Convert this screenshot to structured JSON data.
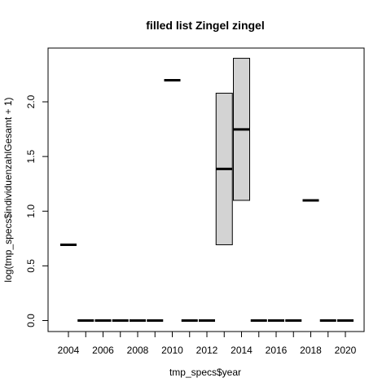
{
  "chart_data": {
    "type": "boxplot",
    "title": "filled list Zingel zingel",
    "xlabel": "tmp_specs$year",
    "ylabel": "log(tmp_specs$individuenzahlGesamt + 1)",
    "categories": [
      "2004",
      "2005",
      "2006",
      "2007",
      "2008",
      "2009",
      "2010",
      "2011",
      "2012",
      "2013",
      "2014",
      "2015",
      "2016",
      "2017",
      "2018",
      "2019",
      "2020"
    ],
    "x_tick_labels": [
      "2004",
      "2006",
      "2008",
      "2010",
      "2012",
      "2014",
      "2016",
      "2018",
      "2020"
    ],
    "y_ticks": [
      0.0,
      0.5,
      1.0,
      1.5,
      2.0
    ],
    "y_tick_labels": [
      "0.0",
      "0.5",
      "1.0",
      "1.5",
      "2.0"
    ],
    "ylim": [
      -0.1,
      2.5
    ],
    "boxes": [
      {
        "x": "2004",
        "q1": 0.693,
        "median": 0.693,
        "q3": 0.693
      },
      {
        "x": "2005",
        "q1": 0.0,
        "median": 0.0,
        "q3": 0.0
      },
      {
        "x": "2006",
        "q1": 0.0,
        "median": 0.0,
        "q3": 0.0
      },
      {
        "x": "2007",
        "q1": 0.0,
        "median": 0.0,
        "q3": 0.0
      },
      {
        "x": "2008",
        "q1": 0.0,
        "median": 0.0,
        "q3": 0.0
      },
      {
        "x": "2009",
        "q1": 0.0,
        "median": 0.0,
        "q3": 0.0
      },
      {
        "x": "2010",
        "q1": 2.197,
        "median": 2.197,
        "q3": 2.197
      },
      {
        "x": "2011",
        "q1": 0.0,
        "median": 0.0,
        "q3": 0.0
      },
      {
        "x": "2012",
        "q1": 0.0,
        "median": 0.0,
        "q3": 0.0
      },
      {
        "x": "2013",
        "q1": 0.693,
        "median": 1.386,
        "q3": 2.079
      },
      {
        "x": "2014",
        "q1": 1.099,
        "median": 1.748,
        "q3": 2.398
      },
      {
        "x": "2015",
        "q1": 0.0,
        "median": 0.0,
        "q3": 0.0
      },
      {
        "x": "2016",
        "q1": 0.0,
        "median": 0.0,
        "q3": 0.0
      },
      {
        "x": "2017",
        "q1": 0.0,
        "median": 0.0,
        "q3": 0.0
      },
      {
        "x": "2018",
        "q1": 1.099,
        "median": 1.099,
        "q3": 1.099
      },
      {
        "x": "2019",
        "q1": 0.0,
        "median": 0.0,
        "q3": 0.0
      },
      {
        "x": "2020",
        "q1": 0.0,
        "median": 0.0,
        "q3": 0.0
      }
    ],
    "box_fill": "#d3d3d3",
    "grid": false,
    "legend": "none"
  }
}
